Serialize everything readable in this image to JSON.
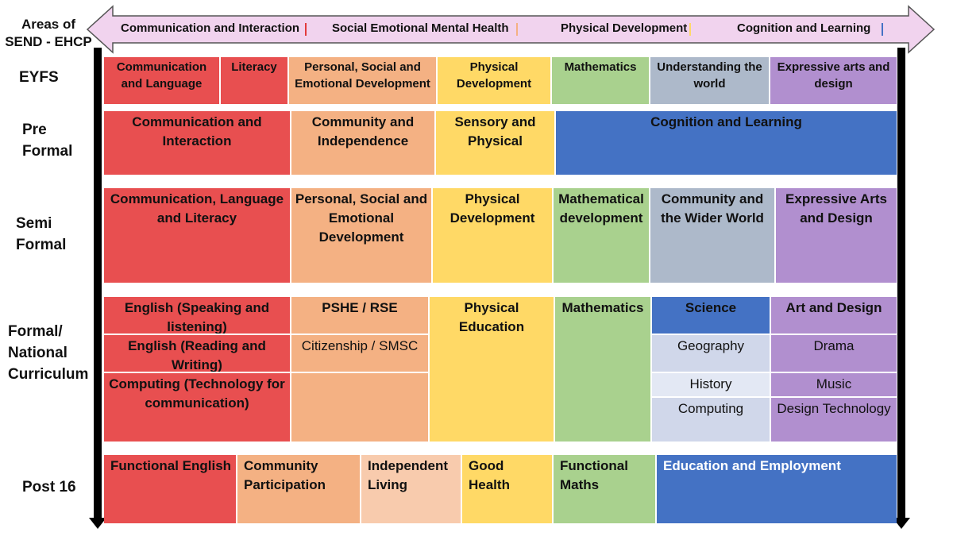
{
  "colors": {
    "red": "#E84F50",
    "orange": "#F4B183",
    "peach": "#F8CBAD",
    "yellow": "#FFD966",
    "green": "#A9D18E",
    "grey_blue": "#ADB9CA",
    "purple": "#B18FCF",
    "blue": "#4472C4",
    "light_blue": "#D0D7EA",
    "arrow_fill": "#F1D3EE",
    "arrow_stroke": "#555555",
    "timeline": "#000000"
  },
  "areas": {
    "label_line1": "Areas of",
    "label_line2": "SEND - EHCP",
    "items": [
      {
        "label": "Communication and Interaction",
        "marker": "#E23A3A"
      },
      {
        "label": "Social Emotional Mental Health",
        "marker": "#F4B183"
      },
      {
        "label": "Physical Development",
        "marker": "#FFD966"
      },
      {
        "label": "Cognition and Learning",
        "marker": "#4472C4"
      }
    ]
  },
  "rows": {
    "eyfs": {
      "label": "EYFS",
      "cells": [
        "Communication and Language",
        "Literacy",
        "Personal, Social and Emotional Development",
        "Physical Development",
        "Mathematics",
        "Understanding the world",
        "Expressive arts and design"
      ]
    },
    "pre_formal": {
      "label_line1": "Pre",
      "label_line2": "Formal",
      "cells": [
        "Communication and Interaction",
        "Community and Independence",
        "Sensory and Physical",
        "Cognition and Learning"
      ]
    },
    "semi_formal": {
      "label_line1": "Semi",
      "label_line2": "Formal",
      "cells": [
        "Communication, Language and Literacy",
        "Personal, Social and Emotional Development",
        "Physical Development",
        "Mathematical development",
        "Community and the Wider World",
        "Expressive Arts and Design"
      ]
    },
    "formal": {
      "label_line1": "Formal/",
      "label_line2": "National",
      "label_line3": "Curriculum",
      "cells": {
        "english_speaking": "English (Speaking and listening)",
        "english_reading": "English (Reading and Writing)",
        "computing_comm": "Computing (Technology for communication)",
        "pshe": "PSHE / RSE",
        "citizenship": "Citizenship / SMSC",
        "pe": "Physical Education",
        "maths": "Mathematics",
        "science": "Science",
        "geography": "Geography",
        "history": "History",
        "computing": "Computing",
        "art": "Art and Design",
        "drama": "Drama",
        "music": "Music",
        "dt": "Design Technology"
      }
    },
    "post16": {
      "label": "Post 16",
      "cells": [
        "Functional English",
        "Community Participation",
        "Independent Living",
        "Good Health",
        "Functional Maths",
        "Education and Employment"
      ]
    }
  }
}
